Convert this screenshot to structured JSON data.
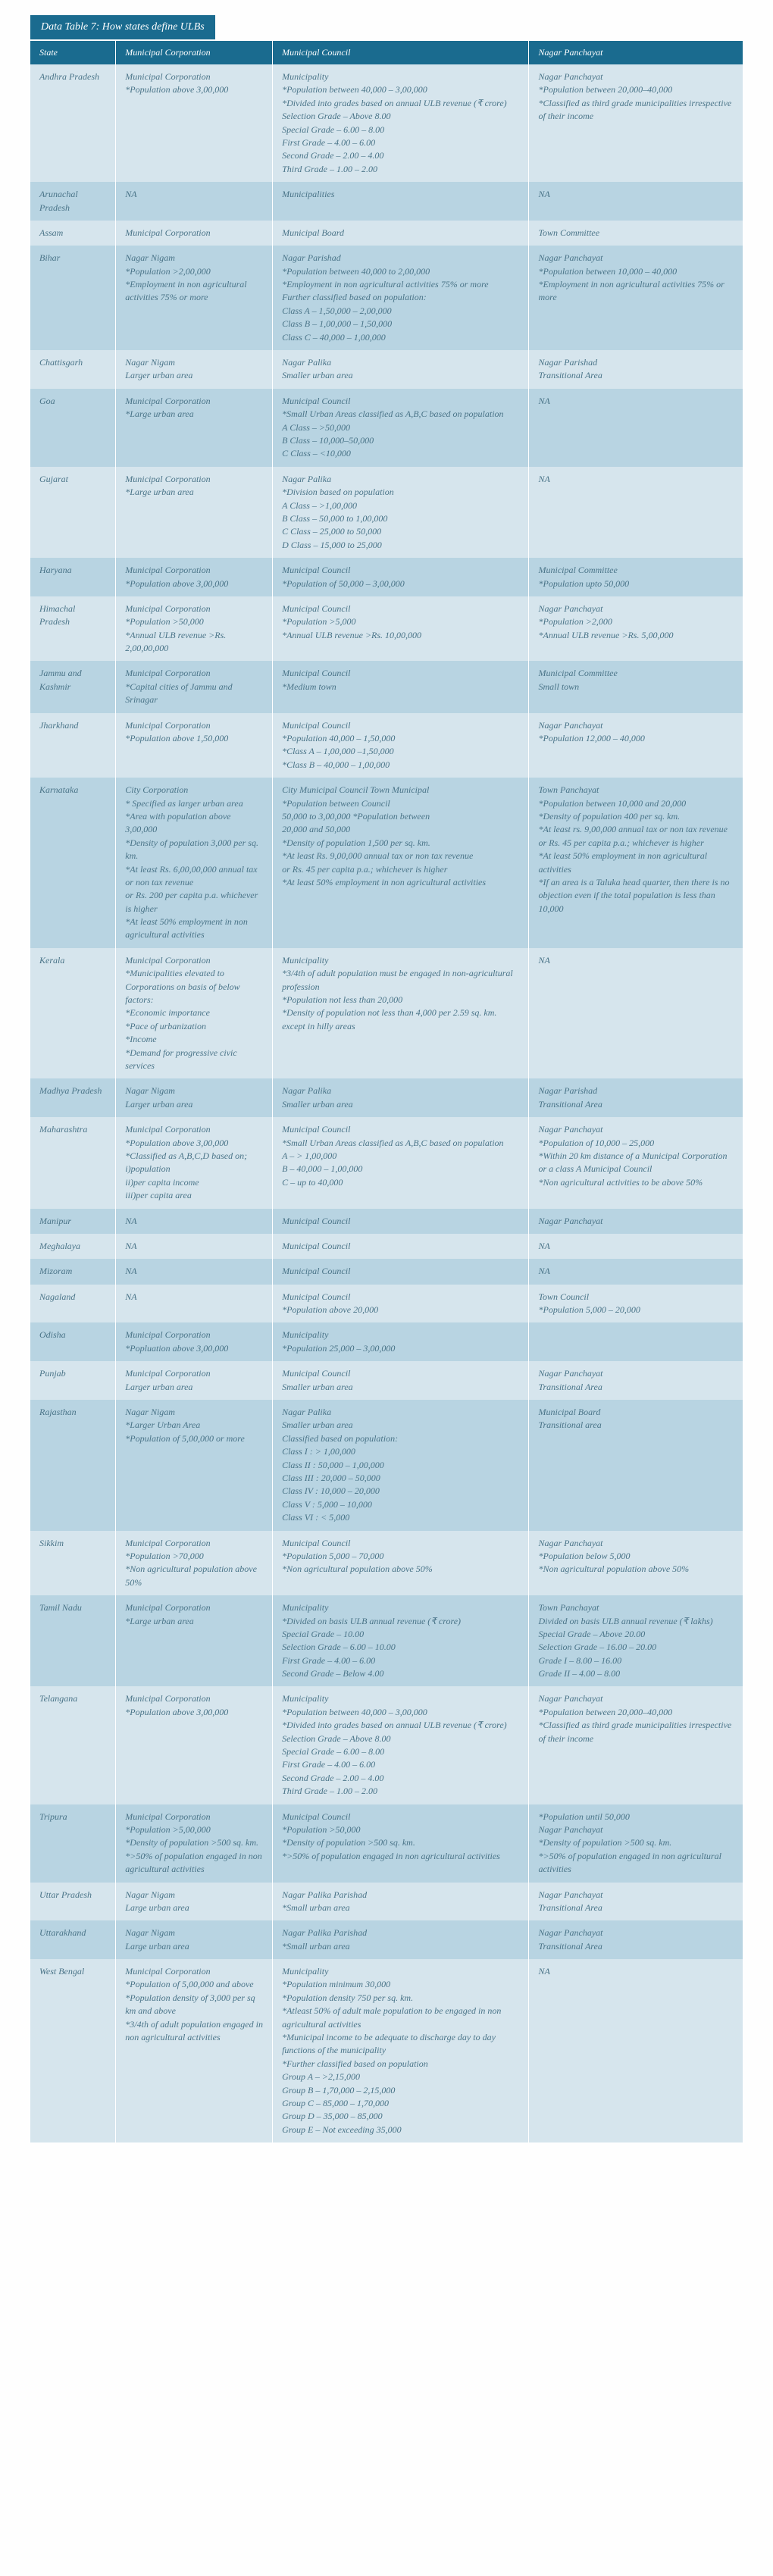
{
  "title": "Data Table 7: How states define ULBs",
  "columns": [
    "State",
    "Municipal Corporation",
    "Municipal Council",
    "Nagar Panchayat"
  ],
  "rows": [
    {
      "state": "Andhra Pradesh",
      "corp": [
        "Municipal Corporation",
        "*Population above 3,00,000"
      ],
      "council": [
        "Municipality",
        "*Population between 40,000 – 3,00,000",
        "*Divided into grades based on annual ULB revenue (₹ crore)",
        "Selection Grade – Above 8.00",
        "Special Grade – 6.00 – 8.00",
        "First Grade – 4.00 – 6.00",
        "Second Grade – 2.00 – 4.00",
        "Third Grade – 1.00 – 2.00"
      ],
      "panch": [
        "Nagar Panchayat",
        "*Population between 20,000–40,000",
        "*Classified as third grade municipalities irrespective of their income"
      ]
    },
    {
      "state": "Arunachal Pradesh",
      "corp": [
        "NA"
      ],
      "council": [
        "Municipalities"
      ],
      "panch": [
        "NA"
      ]
    },
    {
      "state": "Assam",
      "corp": [
        "Municipal Corporation"
      ],
      "council": [
        "Municipal Board"
      ],
      "panch": [
        "Town Committee"
      ]
    },
    {
      "state": "Bihar",
      "corp": [
        "Nagar Nigam",
        "*Population >2,00,000",
        "*Employment in non agricultural activities 75% or more"
      ],
      "council": [
        "Nagar Parishad",
        "*Population between 40,000 to 2,00,000",
        "*Employment in non agricultural activities 75% or more",
        "Further classified based on population:",
        "Class A – 1,50,000 – 2,00,000",
        "Class B – 1,00,000 – 1,50,000",
        "Class C – 40,000 – 1,00,000"
      ],
      "panch": [
        "Nagar Panchayat",
        "*Population between 10,000 – 40,000",
        "*Employment in non agricultural activities 75% or more"
      ]
    },
    {
      "state": "Chattisgarh",
      "corp": [
        "Nagar Nigam",
        "Larger urban area"
      ],
      "council": [
        "Nagar Palika",
        "Smaller urban area"
      ],
      "panch": [
        "Nagar Parishad",
        "Transitional Area"
      ]
    },
    {
      "state": "Goa",
      "corp": [
        "Municipal Corporation",
        "*Large urban area"
      ],
      "council": [
        "Municipal Council",
        "*Small Urban Areas classified as A,B,C based on population",
        "A Class – >50,000",
        "B Class – 10,000–50,000",
        "C Class – <10,000"
      ],
      "panch": [
        "NA"
      ]
    },
    {
      "state": "Gujarat",
      "corp": [
        "Municipal Corporation",
        "*Large urban area"
      ],
      "council": [
        "Nagar Palika",
        "*Division based on population",
        "A Class – >1,00,000",
        "B Class – 50,000 to 1,00,000",
        "C Class – 25,000 to 50,000",
        "D Class – 15,000 to 25,000"
      ],
      "panch": [
        "NA"
      ]
    },
    {
      "state": "Haryana",
      "corp": [
        "Municipal Corporation",
        "*Population above 3,00,000"
      ],
      "council": [
        "Municipal Council",
        "*Population of 50,000 – 3,00,000"
      ],
      "panch": [
        "Municipal Committee",
        "*Population upto 50,000"
      ]
    },
    {
      "state": "Himachal Pradesh",
      "corp": [
        "Municipal Corporation",
        "*Population >50,000",
        "*Annual ULB revenue >Rs. 2,00,00,000"
      ],
      "council": [
        "Municipal Council",
        "*Population >5,000",
        "*Annual ULB revenue >Rs. 10,00,000"
      ],
      "panch": [
        "Nagar Panchayat",
        "*Population >2,000",
        "*Annual ULB revenue >Rs. 5,00,000"
      ]
    },
    {
      "state": "Jammu and Kashmir",
      "corp": [
        "Municipal Corporation",
        "*Capital cities of Jammu and Srinagar"
      ],
      "council": [
        "Municipal Council",
        "*Medium town"
      ],
      "panch": [
        "Municipal Committee",
        "Small town"
      ]
    },
    {
      "state": "Jharkhand",
      "corp": [
        "Municipal Corporation",
        "*Population above 1,50,000"
      ],
      "council": [
        "Municipal Council",
        "*Population 40,000 – 1,50,000",
        "*Class A – 1,00,000 –1,50,000",
        "*Class B – 40,000 – 1,00,000"
      ],
      "panch": [
        "Nagar Panchayat",
        "*Population 12,000 – 40,000"
      ]
    },
    {
      "state": "Karnataka",
      "corp": [
        "City Corporation",
        "* Specified as larger urban area",
        "*Area with population above 3,00,000",
        "*Density of population 3,000 per sq. km.",
        "*At least Rs. 6,00,00,000 annual tax or non tax revenue",
        "or Rs. 200 per capita p.a. whichever is higher",
        "*At least 50% employment in non agricultural activities"
      ],
      "council": [
        "City Municipal Council        Town Municipal",
        "*Population between           Council",
        "  50,000 to 3,00,000      *Population between",
        "                                       20,000 and 50,000",
        "*Density of population 1,500 per sq. km.",
        "*At least Rs. 9,00,000 annual tax or non tax revenue",
        "or Rs. 45 per capita p.a.; whichever is higher",
        "*At least 50% employment in non agricultural activities"
      ],
      "panch": [
        "Town Panchayat",
        "*Population between 10,000 and 20,000",
        "*Density of population 400 per sq. km.",
        "*At least rs. 9,00,000 annual tax or non tax revenue",
        " or Rs. 45 per capita p.a.; whichever is higher",
        "*At least 50% employment in non agricultural activities",
        "*If an area is a Taluka head quarter, then there is no objection even if the total population is less than 10,000"
      ]
    },
    {
      "state": "Kerala",
      "corp": [
        "Municipal Corporation",
        "*Municipalities elevated to Corporations on basis of below factors:",
        "*Economic importance",
        "*Pace of urbanization",
        "*Income",
        "*Demand for progressive civic services"
      ],
      "council": [
        "Municipality",
        "*3/4th of adult population must be engaged in non-agricultural profession",
        "*Population not less than 20,000",
        "*Density of population not less than 4,000 per 2.59 sq. km. except in hilly areas"
      ],
      "panch": [
        "NA"
      ]
    },
    {
      "state": "Madhya Pradesh",
      "corp": [
        "Nagar Nigam",
        "Larger urban area"
      ],
      "council": [
        "Nagar Palika",
        "Smaller urban area"
      ],
      "panch": [
        "Nagar Parishad",
        "Transitional Area"
      ]
    },
    {
      "state": "Maharashtra",
      "corp": [
        "Municipal Corporation",
        "*Population above 3,00,000",
        "*Classified as A,B,C,D based on;",
        "i)population",
        "ii)per capita income",
        "iii)per capita area"
      ],
      "council": [
        "Municipal Council",
        "*Small Urban Areas classified as A,B,C based on population",
        "A – > 1,00,000",
        "B – 40,000 – 1,00,000",
        "C – up to 40,000"
      ],
      "panch": [
        "Nagar Panchayat",
        "*Population of 10,000 – 25,000",
        "*Within 20 km distance of a Municipal Corporation or a class A Municipal Council",
        "*Non agricultural activities to be above 50%"
      ]
    },
    {
      "state": "Manipur",
      "corp": [
        "NA"
      ],
      "council": [
        "Municipal Council"
      ],
      "panch": [
        "Nagar Panchayat"
      ]
    },
    {
      "state": "Meghalaya",
      "corp": [
        "NA"
      ],
      "council": [
        "Municipal Council"
      ],
      "panch": [
        "NA"
      ]
    },
    {
      "state": "Mizoram",
      "corp": [
        "NA"
      ],
      "council": [
        "Municipal Council"
      ],
      "panch": [
        "NA"
      ]
    },
    {
      "state": "Nagaland",
      "corp": [
        "NA"
      ],
      "council": [
        "Municipal Council",
        "*Population above 20,000"
      ],
      "panch": [
        "Town Council",
        "*Population 5,000 – 20,000"
      ]
    },
    {
      "state": "Odisha",
      "corp": [
        "Municipal Corporation",
        "*Popluation above 3,00,000"
      ],
      "council": [
        "Municipality",
        "*Population 25,000 – 3,00,000"
      ],
      "panch": [
        ""
      ]
    },
    {
      "state": "Punjab",
      "corp": [
        "Municipal Corporation",
        "Larger urban area"
      ],
      "council": [
        "Municipal Council",
        "Smaller urban area"
      ],
      "panch": [
        "Nagar Panchayat",
        "Transitional Area"
      ]
    },
    {
      "state": "Rajasthan",
      "corp": [
        "Nagar Nigam",
        "*Larger Urban Area",
        "*Population of 5,00,000 or more"
      ],
      "council": [
        "Nagar Palika",
        "Smaller urban area",
        "Classified based on population:",
        "Class I : > 1,00,000",
        "Class II : 50,000 – 1,00,000",
        "Class III : 20,000 – 50,000",
        "Class IV : 10,000 – 20,000",
        "Class V : 5,000 – 10,000",
        "Class VI : < 5,000"
      ],
      "panch": [
        "Municipal Board",
        "Transitional area"
      ]
    },
    {
      "state": "Sikkim",
      "corp": [
        "Municipal Corporation",
        "*Population >70,000",
        "*Non agricultural population above 50%"
      ],
      "council": [
        "Municipal Council",
        "*Population 5,000 – 70,000",
        "*Non agricultural population above 50%"
      ],
      "panch": [
        "Nagar Panchayat",
        "*Population below 5,000",
        "*Non agricultural population above 50%"
      ]
    },
    {
      "state": "Tamil Nadu",
      "corp": [
        "Municipal Corporation",
        "*Large urban area"
      ],
      "council": [
        "Municipality",
        "*Divided on basis ULB annual revenue (₹ crore)",
        "Special Grade – 10.00",
        "Selection Grade – 6.00 – 10.00",
        "First Grade – 4.00 – 6.00",
        "Second Grade – Below 4.00"
      ],
      "panch": [
        "Town Panchayat",
        "Divided on basis ULB annual revenue (₹ lakhs)",
        "Special Grade – Above 20.00",
        "Selection Grade – 16.00 – 20.00",
        "Grade I – 8.00 – 16.00",
        "Grade II – 4.00 – 8.00"
      ]
    },
    {
      "state": "Telangana",
      "corp": [
        "Municipal Corporation",
        "*Population above 3,00,000"
      ],
      "council": [
        "Municipality",
        "*Population between 40,000 – 3,00,000",
        "*Divided into grades based on annual ULB revenue (₹ crore)",
        "Selection Grade – Above 8.00",
        "Special Grade – 6.00 – 8.00",
        "First Grade – 4.00 – 6.00",
        "Second Grade – 2.00 – 4.00",
        "Third Grade – 1.00 – 2.00"
      ],
      "panch": [
        "Nagar Panchayat",
        "*Population between 20,000–40,000",
        "*Classified as third grade municipalities irrespective of their income"
      ]
    },
    {
      "state": "Tripura",
      "corp": [
        "Municipal Corporation",
        "*Population >5,00,000",
        "*Density of population >500 sq. km.",
        "*>50% of population engaged in non agricultural activities"
      ],
      "council": [
        "Municipal Council",
        "*Population >50,000",
        "*Density of population >500 sq. km.",
        "*>50% of population engaged in non agricultural activities"
      ],
      "panch": [
        "*Population until 50,000",
        "Nagar Panchayat",
        "*Density of population >500 sq. km.",
        "*>50% of population engaged in non agricultural activities"
      ]
    },
    {
      "state": "Uttar Pradesh",
      "corp": [
        "Nagar Nigam",
        "Large urban area"
      ],
      "council": [
        "Nagar Palika Parishad",
        "*Small urban area"
      ],
      "panch": [
        "Nagar Panchayat",
        "Transitional Area"
      ]
    },
    {
      "state": "Uttarakhand",
      "corp": [
        "Nagar Nigam",
        "Large urban area"
      ],
      "council": [
        "Nagar Palika Parishad",
        "*Small urban area"
      ],
      "panch": [
        "Nagar Panchayat",
        "Transitional Area"
      ]
    },
    {
      "state": "West Bengal",
      "corp": [
        "Municipal Corporation",
        "*Population of 5,00,000 and above",
        "*Population density of 3,000 per sq km and above",
        "*3/4th of adult population engaged in non agricultural activities"
      ],
      "council": [
        "Municipality",
        "*Population minimum 30,000",
        "*Population density 750 per sq. km.",
        "*Atleast 50% of adult male population to be engaged in non agricultural activities",
        "*Municipal income to be adequate to discharge day to day functions of the municipality",
        "*Further classified based on population",
        "Group A – >2,15,000",
        "Group B – 1,70,000 – 2,15,000",
        "Group C – 85,000 – 1,70,000",
        "Group D – 35,000 – 85,000",
        "Group E – Not exceeding 35,000"
      ],
      "panch": [
        "NA"
      ]
    }
  ]
}
